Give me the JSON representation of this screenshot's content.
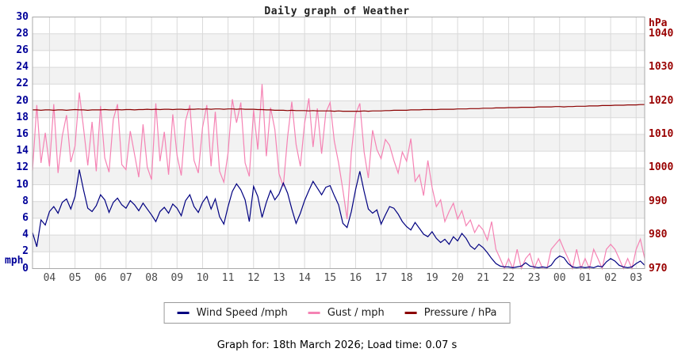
{
  "footer": {
    "caption": "Graph for: 18th March 2026; Load time: 0.07 s"
  },
  "colors": {
    "background": "#ffffff",
    "band": "#f2f2f2",
    "grid": "#d9d9d9",
    "plot_border": "#aaaaaa",
    "left_axis_text": "#000099",
    "right_axis_text": "#990000",
    "x_axis_text": "#4a4a4a"
  },
  "chart_data": {
    "type": "line",
    "title": "Daily graph of Weather",
    "grid": true,
    "legend_position": "bottom-center",
    "left_axis": {
      "label": "mph",
      "range": [
        0,
        30
      ],
      "ticks": [
        0,
        2,
        4,
        6,
        8,
        10,
        12,
        14,
        16,
        18,
        20,
        22,
        24,
        26,
        28,
        30
      ]
    },
    "right_axis": {
      "label": "hPa",
      "range": [
        970,
        1045
      ],
      "ticks": [
        970,
        980,
        990,
        1000,
        1010,
        1020,
        1030,
        1040
      ]
    },
    "x_axis": {
      "description": "24 hours of minute-style data from 03:20 to 03:20 next day, sampled every 10 minutes",
      "start_hour": 3.3333,
      "interval_hours": 0.16667,
      "points": 145,
      "tick_hours": [
        4,
        5,
        6,
        7,
        8,
        9,
        10,
        11,
        12,
        13,
        14,
        15,
        16,
        17,
        18,
        19,
        20,
        21,
        22,
        23,
        24,
        25,
        26,
        27
      ],
      "tick_labels": [
        "04",
        "05",
        "06",
        "07",
        "08",
        "09",
        "10",
        "11",
        "12",
        "13",
        "14",
        "15",
        "16",
        "17",
        "18",
        "19",
        "20",
        "21",
        "22",
        "23",
        "00",
        "01",
        "02",
        "03"
      ]
    },
    "series": [
      {
        "name": "Wind Speed /mph",
        "axis": "left",
        "color": "#000080",
        "values": [
          4.3,
          2.6,
          5.8,
          5.2,
          6.8,
          7.4,
          6.6,
          7.9,
          8.3,
          7.1,
          8.6,
          11.8,
          9.4,
          7.2,
          6.8,
          7.5,
          8.8,
          8.2,
          6.7,
          7.9,
          8.4,
          7.6,
          7.2,
          8.1,
          7.6,
          6.9,
          7.8,
          7.1,
          6.4,
          5.6,
          6.8,
          7.3,
          6.6,
          7.7,
          7.2,
          6.3,
          8.1,
          8.8,
          7.4,
          6.7,
          7.9,
          8.6,
          7.1,
          8.3,
          6.2,
          5.3,
          7.4,
          9.2,
          10.1,
          9.4,
          8.2,
          5.6,
          9.8,
          8.6,
          6.1,
          7.9,
          9.3,
          8.2,
          8.9,
          10.2,
          9.0,
          7.1,
          5.4,
          6.6,
          8.1,
          9.3,
          10.4,
          9.6,
          8.8,
          9.7,
          9.9,
          8.7,
          7.6,
          5.4,
          4.9,
          6.8,
          9.4,
          11.6,
          9.2,
          7.1,
          6.6,
          7.0,
          5.3,
          6.4,
          7.4,
          7.2,
          6.5,
          5.6,
          5.0,
          4.6,
          5.5,
          4.8,
          4.1,
          3.8,
          4.4,
          3.6,
          3.1,
          3.5,
          2.9,
          3.8,
          3.3,
          4.2,
          3.6,
          2.7,
          2.3,
          2.9,
          2.5,
          1.9,
          1.2,
          0.6,
          0.3,
          0.2,
          0.2,
          0.1,
          0.2,
          0.3,
          0.7,
          0.3,
          0.2,
          0.1,
          0.2,
          0.1,
          0.4,
          1.1,
          1.5,
          1.3,
          0.6,
          0.2,
          0.1,
          0.2,
          0.1,
          0.2,
          0.1,
          0.3,
          0.2,
          0.8,
          1.2,
          0.9,
          0.4,
          0.2,
          0.1,
          0.2,
          0.6,
          0.9,
          0.4
        ]
      },
      {
        "name": "Gust / mph",
        "axis": "left",
        "color": "#f583b4",
        "values": [
          11.7,
          19.5,
          12.6,
          16.2,
          12.2,
          19.6,
          11.4,
          15.8,
          18.3,
          12.7,
          14.6,
          21.0,
          16.8,
          12.3,
          17.5,
          11.6,
          19.4,
          13.2,
          11.5,
          17.8,
          19.6,
          12.4,
          11.8,
          16.4,
          13.6,
          10.9,
          17.2,
          12.1,
          10.6,
          19.7,
          12.8,
          16.3,
          11.2,
          18.4,
          13.5,
          11.1,
          17.6,
          19.5,
          12.9,
          11.4,
          16.8,
          19.5,
          12.2,
          18.7,
          11.6,
          10.3,
          13.8,
          20.2,
          17.4,
          19.8,
          12.6,
          11.0,
          18.9,
          14.2,
          22.0,
          13.4,
          19.2,
          16.6,
          11.3,
          9.8,
          15.7,
          19.9,
          14.8,
          12.2,
          17.3,
          20.3,
          14.5,
          19.1,
          13.7,
          18.6,
          19.8,
          15.2,
          12.6,
          9.4,
          5.9,
          13.8,
          18.4,
          19.7,
          13.9,
          10.8,
          16.5,
          14.2,
          13.1,
          15.4,
          14.7,
          12.9,
          11.4,
          13.9,
          12.8,
          15.5,
          10.4,
          11.2,
          8.7,
          12.9,
          9.7,
          7.4,
          8.2,
          5.6,
          6.8,
          7.8,
          5.9,
          6.9,
          5.1,
          5.8,
          4.3,
          5.2,
          4.6,
          3.4,
          5.6,
          2.3,
          1.2,
          0.0,
          1.2,
          0.0,
          2.3,
          0.0,
          1.2,
          1.8,
          0.0,
          1.2,
          0.0,
          0.0,
          2.3,
          2.9,
          3.5,
          2.3,
          1.2,
          0.0,
          2.3,
          0.0,
          1.2,
          0.0,
          2.3,
          1.2,
          0.0,
          2.3,
          2.9,
          2.3,
          1.2,
          0.0,
          1.2,
          0.0,
          2.3,
          3.5,
          1.2
        ]
      },
      {
        "name": "Pressure / hPa",
        "axis": "right",
        "color": "#8b0000",
        "values": [
          1017.3,
          1017.3,
          1017.2,
          1017.3,
          1017.3,
          1017.2,
          1017.3,
          1017.3,
          1017.2,
          1017.3,
          1017.4,
          1017.3,
          1017.3,
          1017.2,
          1017.3,
          1017.3,
          1017.3,
          1017.4,
          1017.3,
          1017.3,
          1017.4,
          1017.3,
          1017.4,
          1017.4,
          1017.3,
          1017.4,
          1017.4,
          1017.5,
          1017.4,
          1017.5,
          1017.4,
          1017.5,
          1017.5,
          1017.4,
          1017.5,
          1017.5,
          1017.4,
          1017.5,
          1017.5,
          1017.6,
          1017.5,
          1017.6,
          1017.5,
          1017.6,
          1017.6,
          1017.5,
          1017.6,
          1017.6,
          1017.5,
          1017.6,
          1017.5,
          1017.5,
          1017.5,
          1017.4,
          1017.4,
          1017.3,
          1017.3,
          1017.2,
          1017.2,
          1017.2,
          1017.1,
          1017.2,
          1017.1,
          1017.1,
          1017.1,
          1017.0,
          1017.1,
          1017.0,
          1017.0,
          1017.0,
          1017.0,
          1016.9,
          1017.0,
          1016.9,
          1016.9,
          1016.9,
          1016.9,
          1016.9,
          1017.0,
          1016.9,
          1017.0,
          1017.0,
          1017.0,
          1017.1,
          1017.1,
          1017.2,
          1017.2,
          1017.2,
          1017.2,
          1017.3,
          1017.3,
          1017.3,
          1017.4,
          1017.4,
          1017.4,
          1017.4,
          1017.5,
          1017.5,
          1017.5,
          1017.5,
          1017.6,
          1017.6,
          1017.6,
          1017.7,
          1017.7,
          1017.7,
          1017.8,
          1017.8,
          1017.8,
          1017.9,
          1017.9,
          1017.9,
          1018.0,
          1018.0,
          1018.0,
          1018.1,
          1018.1,
          1018.1,
          1018.1,
          1018.2,
          1018.2,
          1018.2,
          1018.2,
          1018.3,
          1018.3,
          1018.2,
          1018.3,
          1018.3,
          1018.4,
          1018.4,
          1018.4,
          1018.5,
          1018.5,
          1018.5,
          1018.6,
          1018.6,
          1018.6,
          1018.7,
          1018.7,
          1018.7,
          1018.8,
          1018.8,
          1018.8,
          1018.9,
          1018.9
        ]
      }
    ]
  }
}
